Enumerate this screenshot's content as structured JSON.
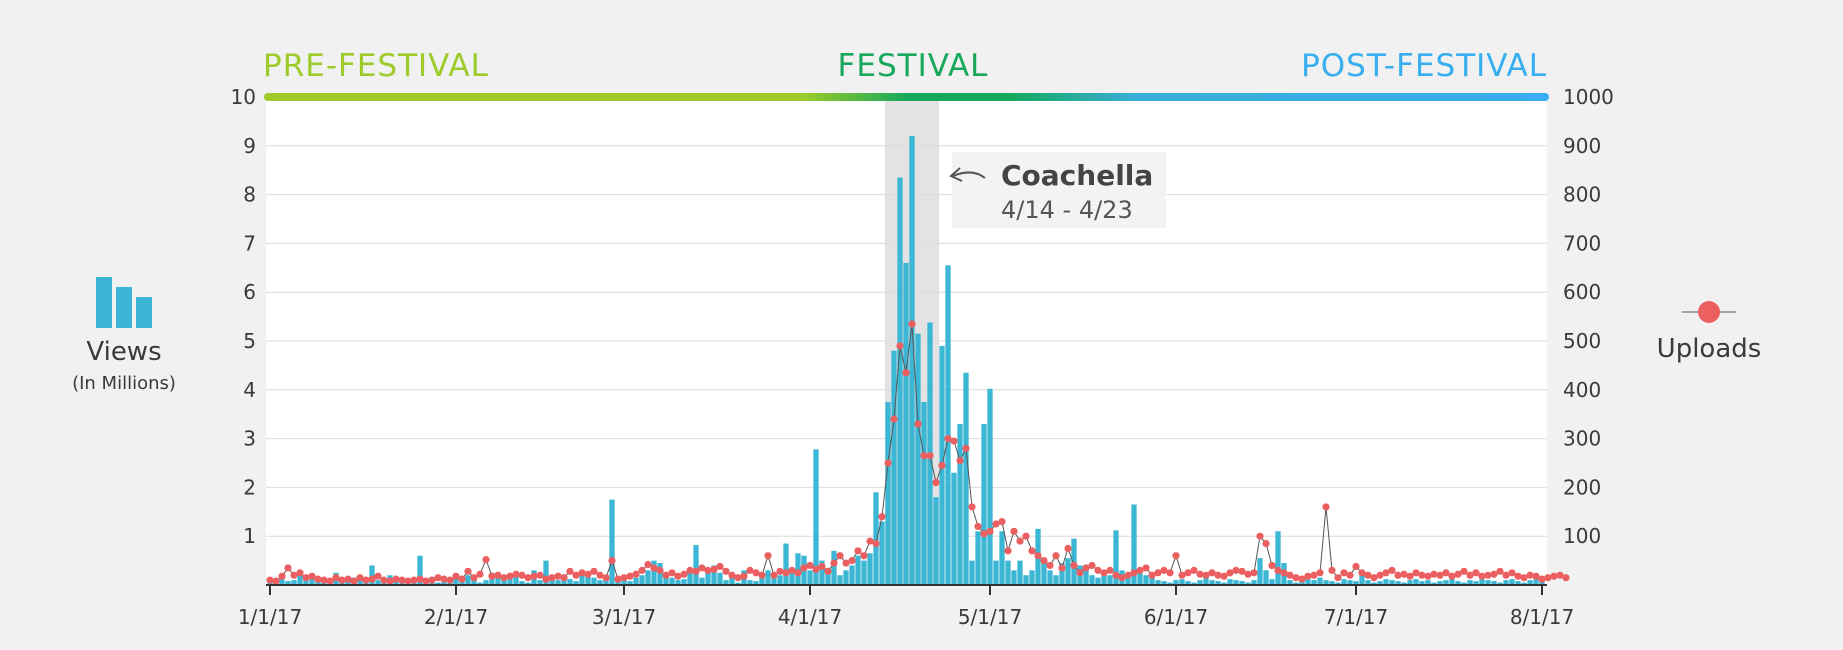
{
  "chart_data": {
    "type": "bar+line",
    "colors": {
      "views": "#3bb6d4",
      "uploads": "#ec5f60",
      "pre": "#9ccb2a",
      "festival": "#17a85c",
      "post": "#36aef0",
      "highlight": "#e3e3e3"
    },
    "phases": {
      "pre": "PRE-FESTIVAL",
      "festival": "FESTIVAL",
      "post": "POST-FESTIVAL"
    },
    "annotation": {
      "title": "Coachella",
      "dates": "4/14 - 4/23",
      "start_day": 103,
      "end_day": 111
    },
    "left_legend": {
      "label": "Views",
      "sublabel": "(In Millions)",
      "icon": "bar-chart-icon"
    },
    "right_legend": {
      "label": "Uploads",
      "icon": "line-marker-icon"
    },
    "x_ticks": [
      {
        "label": "1/1/17",
        "day": 0
      },
      {
        "label": "2/1/17",
        "day": 31
      },
      {
        "label": "3/1/17",
        "day": 59
      },
      {
        "label": "4/1/17",
        "day": 90
      },
      {
        "label": "5/1/17",
        "day": 120
      },
      {
        "label": "6/1/17",
        "day": 151
      },
      {
        "label": "7/1/17",
        "day": 181
      },
      {
        "label": "8/1/17",
        "day": 212
      }
    ],
    "y_left": {
      "ticks": [
        "1",
        "2",
        "3",
        "4",
        "5",
        "6",
        "7",
        "8",
        "9",
        "10"
      ],
      "range": [
        0,
        10
      ]
    },
    "y_right": {
      "ticks": [
        "100",
        "200",
        "300",
        "400",
        "500",
        "600",
        "700",
        "800",
        "900",
        "1000"
      ],
      "range": [
        0,
        1000
      ]
    },
    "views": [
      0.05,
      0.1,
      0.12,
      0.08,
      0.1,
      0.2,
      0.15,
      0.12,
      0.08,
      0.12,
      0.05,
      0.25,
      0.1,
      0.08,
      0.15,
      0.1,
      0.05,
      0.4,
      0.1,
      0.12,
      0.2,
      0.1,
      0.05,
      0.08,
      0.12,
      0.6,
      0.08,
      0.1,
      0.05,
      0.12,
      0.08,
      0.15,
      0.1,
      0.2,
      0.12,
      0.05,
      0.1,
      0.25,
      0.15,
      0.1,
      0.12,
      0.2,
      0.08,
      0.05,
      0.3,
      0.1,
      0.5,
      0.15,
      0.1,
      0.2,
      0.12,
      0.08,
      0.3,
      0.25,
      0.15,
      0.1,
      0.2,
      1.75,
      0.1,
      0.12,
      0.08,
      0.15,
      0.2,
      0.3,
      0.5,
      0.45,
      0.2,
      0.15,
      0.1,
      0.12,
      0.3,
      0.82,
      0.15,
      0.35,
      0.4,
      0.25,
      0.1,
      0.15,
      0.05,
      0.3,
      0.1,
      0.08,
      0.2,
      0.3,
      0.15,
      0.2,
      0.85,
      0.3,
      0.65,
      0.6,
      0.3,
      2.78,
      0.5,
      0.35,
      0.7,
      0.2,
      0.3,
      0.4,
      0.6,
      0.5,
      0.65,
      1.9,
      1.3,
      3.75,
      4.8,
      8.35,
      6.6,
      9.2,
      5.15,
      3.75,
      5.38,
      1.8,
      4.9,
      6.55,
      2.3,
      3.3,
      4.35,
      0.5,
      1.1,
      3.3,
      4.02,
      0.5,
      1.1,
      0.5,
      0.3,
      0.5,
      0.2,
      0.3,
      1.15,
      0.5,
      0.3,
      0.2,
      0.45,
      0.55,
      0.95,
      0.4,
      0.3,
      0.2,
      0.15,
      0.25,
      0.2,
      1.12,
      0.3,
      0.25,
      1.65,
      0.3,
      0.2,
      0.15,
      0.1,
      0.08,
      0.05,
      0.1,
      0.12,
      0.08,
      0.05,
      0.1,
      0.15,
      0.1,
      0.08,
      0.05,
      0.12,
      0.1,
      0.08,
      0.05,
      0.1,
      0.55,
      0.3,
      0.12,
      1.1,
      0.45,
      0.1,
      0.05,
      0.08,
      0.12,
      0.1,
      0.15,
      0.1,
      0.08,
      0.05,
      0.12,
      0.1,
      0.08,
      0.25,
      0.1,
      0.05,
      0.08,
      0.12,
      0.1,
      0.08,
      0.05,
      0.1,
      0.12,
      0.08,
      0.1,
      0.05,
      0.08,
      0.1,
      0.12,
      0.08,
      0.05,
      0.1,
      0.08,
      0.12,
      0.1,
      0.08,
      0.05,
      0.1,
      0.12,
      0.08,
      0.05,
      0.1,
      0.12,
      0.08
    ],
    "uploads": [
      10,
      8,
      18,
      35,
      20,
      25,
      15,
      18,
      12,
      10,
      8,
      15,
      10,
      12,
      8,
      15,
      10,
      12,
      18,
      10,
      8,
      12,
      10,
      8,
      10,
      12,
      8,
      10,
      15,
      12,
      10,
      18,
      12,
      28,
      15,
      22,
      52,
      18,
      20,
      15,
      18,
      22,
      20,
      15,
      18,
      20,
      12,
      15,
      18,
      15,
      28,
      20,
      25,
      22,
      28,
      20,
      15,
      50,
      12,
      15,
      18,
      22,
      30,
      42,
      35,
      30,
      20,
      25,
      18,
      22,
      30,
      28,
      35,
      30,
      32,
      38,
      28,
      20,
      15,
      18,
      30,
      25,
      20,
      60,
      20,
      28,
      25,
      30,
      25,
      35,
      40,
      32,
      38,
      28,
      45,
      60,
      45,
      50,
      70,
      60,
      90,
      85,
      140,
      250,
      340,
      490,
      435,
      535,
      330,
      265,
      265,
      210,
      245,
      300,
      295,
      255,
      280,
      160,
      120,
      105,
      110,
      125,
      130,
      70,
      110,
      90,
      100,
      70,
      60,
      50,
      40,
      60,
      35,
      75,
      40,
      25,
      35,
      40,
      30,
      25,
      30,
      20,
      15,
      20,
      25,
      30,
      35,
      20,
      25,
      30,
      25,
      60,
      20,
      25,
      30,
      22,
      20,
      25,
      20,
      18,
      25,
      30,
      28,
      22,
      25,
      100,
      85,
      40,
      30,
      25,
      20,
      15,
      12,
      18,
      20,
      25,
      160,
      30,
      15,
      25,
      20,
      38,
      25,
      20,
      15,
      20,
      25,
      30,
      20,
      22,
      18,
      25,
      20,
      18,
      22,
      20,
      25,
      18,
      22,
      28,
      20,
      25,
      18,
      20,
      22,
      28,
      20,
      25,
      18,
      15,
      20,
      18,
      12,
      15,
      18,
      20,
      15
    ]
  }
}
